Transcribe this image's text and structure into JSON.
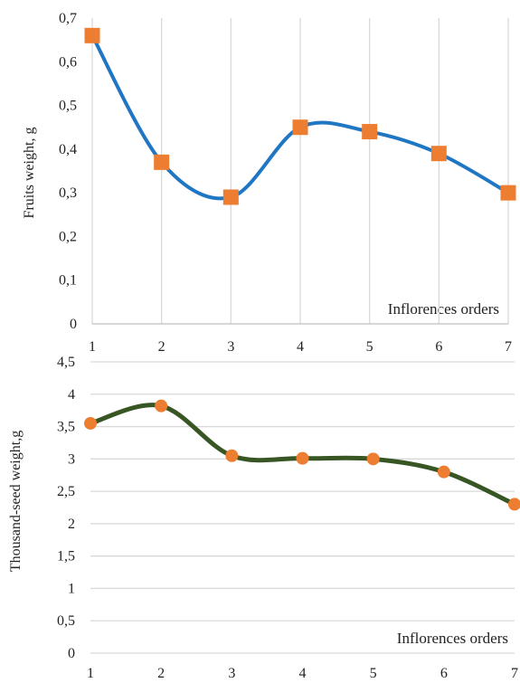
{
  "chart_data": [
    {
      "type": "line",
      "x": [
        1,
        2,
        3,
        4,
        5,
        6,
        7
      ],
      "x_tick_labels": [
        "1",
        "2",
        "3",
        "4",
        "5",
        "6",
        "7"
      ],
      "xlim": [
        1,
        7
      ],
      "series": [
        {
          "values": [
            0.66,
            0.37,
            0.29,
            0.45,
            0.44,
            0.39,
            0.3
          ],
          "line_color": "#1f77c4",
          "marker": "square",
          "marker_color": "#ed7d31",
          "smooth": true
        }
      ],
      "ylabel": "Fruits weight, g",
      "annotation": "Inflorences orders",
      "ylim": [
        0,
        0.7
      ],
      "y_ticks": [
        0,
        0.1,
        0.2,
        0.3,
        0.4,
        0.5,
        0.6,
        0.7
      ],
      "y_tick_labels": [
        "0",
        "0,1",
        "0,2",
        "0,3",
        "0,4",
        "0,5",
        "0,6",
        "0,7"
      ],
      "grid": "vertical"
    },
    {
      "type": "line",
      "x": [
        1,
        2,
        3,
        4,
        5,
        6,
        7
      ],
      "x_tick_labels": [
        "1",
        "2",
        "3",
        "4",
        "5",
        "6",
        "7"
      ],
      "xlim": [
        1,
        7
      ],
      "series": [
        {
          "values": [
            3.55,
            3.82,
            3.05,
            3.01,
            3.0,
            2.8,
            2.3
          ],
          "line_color": "#375623",
          "marker": "circle",
          "marker_color": "#ed7d31",
          "smooth": true
        }
      ],
      "ylabel": "Thousand-seed weight,g",
      "annotation": "Inflorences orders",
      "ylim": [
        0,
        4.5
      ],
      "y_ticks": [
        0,
        0.5,
        1,
        1.5,
        2,
        2.5,
        3,
        3.5,
        4,
        4.5
      ],
      "y_tick_labels": [
        "0",
        "0,5",
        "1",
        "1,5",
        "2",
        "2,5",
        "3",
        "3,5",
        "4",
        "4,5"
      ],
      "grid": "horizontal"
    }
  ]
}
